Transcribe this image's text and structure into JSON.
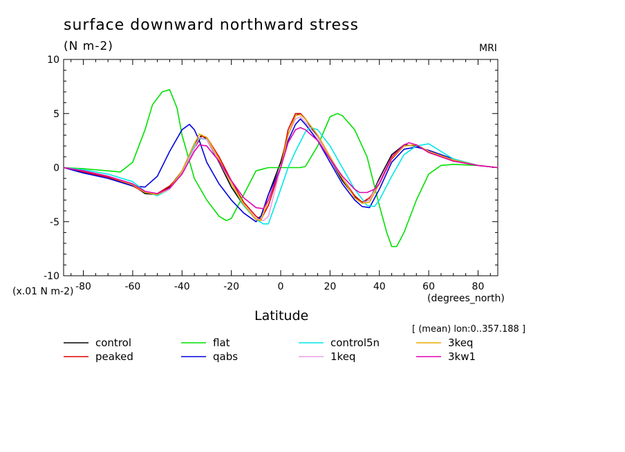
{
  "title": "surface downward northward stress",
  "units": "(N m-2)",
  "model": "MRI",
  "y_scale_note": "(x.01 N m-2)",
  "x_units": "(degrees_north)",
  "xlabel": "Latitude",
  "mean_note": "[ (mean) lon:0..357.188 ]",
  "chart_data": {
    "type": "line",
    "title": "surface downward northward stress",
    "xlabel": "Latitude",
    "ylabel": "(N m-2)",
    "xlim": [
      -88,
      88
    ],
    "ylim": [
      -10,
      10
    ],
    "x_ticks": [
      -80,
      -60,
      -40,
      -20,
      0,
      20,
      40,
      60,
      80
    ],
    "y_ticks": [
      -10,
      -5,
      0,
      5,
      10
    ],
    "x_tick_labels": [
      "-80",
      "-60",
      "-40",
      "-20",
      "0",
      "20",
      "40",
      "60",
      "80"
    ],
    "y_tick_labels": [
      "-10",
      "-5",
      "0",
      "5",
      "10"
    ],
    "grid": false,
    "legend_position": "bottom",
    "series": [
      {
        "name": "control",
        "color": "#000000",
        "x": [
          -88,
          -80,
          -70,
          -60,
          -55,
          -50,
          -45,
          -40,
          -35,
          -32,
          -30,
          -25,
          -20,
          -15,
          -10,
          -8,
          -5,
          0,
          3,
          6,
          8,
          10,
          15,
          20,
          25,
          30,
          33,
          36,
          40,
          45,
          50,
          55,
          60,
          70,
          80,
          88
        ],
        "y": [
          0,
          -0.3,
          -0.8,
          -1.6,
          -2.4,
          -2.5,
          -1.8,
          -0.3,
          2.2,
          3.0,
          2.6,
          0.5,
          -1.8,
          -3.5,
          -4.8,
          -4.5,
          -2.5,
          0.5,
          3.0,
          4.8,
          5.0,
          4.5,
          2.8,
          0.8,
          -1.2,
          -2.7,
          -3.2,
          -3.0,
          -1.0,
          1.2,
          2.1,
          2.0,
          1.5,
          0.7,
          0.2,
          0
        ]
      },
      {
        "name": "peaked",
        "color": "#e00000",
        "x": [
          -88,
          -80,
          -70,
          -60,
          -55,
          -50,
          -45,
          -40,
          -35,
          -32,
          -30,
          -25,
          -20,
          -15,
          -10,
          -8,
          -5,
          0,
          3,
          6,
          8,
          10,
          15,
          20,
          25,
          30,
          33,
          36,
          40,
          45,
          50,
          55,
          60,
          70,
          80,
          88
        ],
        "y": [
          0,
          -0.4,
          -0.9,
          -1.7,
          -2.3,
          -2.4,
          -1.7,
          -0.5,
          1.8,
          2.9,
          2.8,
          1.0,
          -1.2,
          -3.2,
          -4.5,
          -4.8,
          -3.5,
          0,
          3.5,
          5.0,
          5.0,
          4.5,
          3.0,
          1.0,
          -1.0,
          -2.6,
          -3.2,
          -2.8,
          -1.5,
          0.8,
          2.0,
          2.1,
          1.4,
          0.6,
          0.2,
          0
        ]
      },
      {
        "name": "flat",
        "color": "#00e000",
        "x": [
          -88,
          -80,
          -70,
          -65,
          -60,
          -55,
          -52,
          -48,
          -45,
          -42,
          -40,
          -35,
          -30,
          -25,
          -22,
          -20,
          -15,
          -10,
          -5,
          0,
          5,
          8,
          10,
          15,
          20,
          23,
          25,
          30,
          35,
          40,
          43,
          45,
          47,
          50,
          55,
          60,
          65,
          70,
          80,
          88
        ],
        "y": [
          0,
          -0.1,
          -0.3,
          -0.4,
          0.5,
          3.5,
          5.8,
          7.0,
          7.2,
          5.5,
          3.0,
          -1.0,
          -3.0,
          -4.5,
          -4.9,
          -4.7,
          -2.5,
          -0.3,
          0,
          0,
          0,
          0,
          0.1,
          2.0,
          4.7,
          5.0,
          4.8,
          3.5,
          1.0,
          -3.5,
          -6.0,
          -7.3,
          -7.3,
          -6.0,
          -3.0,
          -0.6,
          0.2,
          0.3,
          0.2,
          0
        ]
      },
      {
        "name": "qabs",
        "color": "#0000e0",
        "x": [
          -88,
          -80,
          -70,
          -60,
          -55,
          -50,
          -45,
          -40,
          -37,
          -35,
          -33,
          -30,
          -25,
          -20,
          -15,
          -10,
          -8,
          -5,
          0,
          3,
          6,
          8,
          10,
          15,
          20,
          25,
          30,
          33,
          36,
          40,
          45,
          50,
          55,
          60,
          70,
          80,
          88
        ],
        "y": [
          0,
          -0.5,
          -1.0,
          -1.7,
          -1.8,
          -0.8,
          1.5,
          3.5,
          4.0,
          3.5,
          2.5,
          0.5,
          -1.5,
          -3.0,
          -4.2,
          -5.0,
          -4.5,
          -2.5,
          0,
          2.5,
          4.0,
          4.5,
          4.0,
          2.5,
          0.5,
          -1.5,
          -3.0,
          -3.6,
          -3.7,
          -2.0,
          0.5,
          1.7,
          1.9,
          1.6,
          0.8,
          0.2,
          0
        ]
      },
      {
        "name": "control5n",
        "color": "#00e8e8",
        "x": [
          -88,
          -80,
          -70,
          -60,
          -55,
          -50,
          -45,
          -40,
          -35,
          -33,
          -30,
          -25,
          -20,
          -15,
          -10,
          -7,
          -5,
          0,
          3,
          6,
          10,
          12,
          15,
          20,
          25,
          30,
          35,
          38,
          40,
          45,
          50,
          55,
          60,
          70,
          80,
          88
        ],
        "y": [
          0,
          -0.2,
          -0.6,
          -1.3,
          -2.2,
          -2.6,
          -2.0,
          -0.5,
          2.0,
          2.7,
          2.6,
          0.8,
          -1.5,
          -3.5,
          -4.8,
          -5.2,
          -5.2,
          -2.0,
          0,
          1.5,
          3.3,
          3.7,
          3.5,
          2.0,
          0,
          -2.0,
          -3.5,
          -3.6,
          -3.0,
          -0.8,
          1.2,
          2.0,
          2.2,
          0.8,
          0.2,
          0
        ]
      },
      {
        "name": "1keq",
        "color": "#e8a0e8",
        "x": [
          -88,
          -80,
          -70,
          -60,
          -55,
          -50,
          -45,
          -40,
          -35,
          -33,
          -30,
          -25,
          -20,
          -15,
          -10,
          -7,
          -5,
          0,
          3,
          6,
          8,
          10,
          15,
          20,
          25,
          30,
          33,
          36,
          40,
          45,
          50,
          55,
          60,
          70,
          80,
          88
        ],
        "y": [
          0,
          -0.3,
          -0.8,
          -1.5,
          -2.2,
          -2.5,
          -2.0,
          -0.5,
          1.8,
          2.8,
          2.6,
          0.6,
          -1.5,
          -3.4,
          -4.7,
          -4.9,
          -4.5,
          0,
          3.0,
          4.5,
          4.7,
          4.2,
          2.8,
          0.8,
          -1.0,
          -2.8,
          -3.3,
          -3.0,
          -1.2,
          1.0,
          2.0,
          2.1,
          1.5,
          0.7,
          0.2,
          0
        ]
      },
      {
        "name": "3keq",
        "color": "#e8a800",
        "x": [
          -88,
          -80,
          -70,
          -60,
          -55,
          -50,
          -45,
          -40,
          -35,
          -33,
          -30,
          -25,
          -20,
          -15,
          -10,
          -8,
          -5,
          0,
          3,
          6,
          8,
          10,
          15,
          20,
          25,
          30,
          33,
          36,
          40,
          45,
          50,
          55,
          60,
          70,
          80,
          88
        ],
        "y": [
          0,
          -0.3,
          -0.8,
          -1.6,
          -2.3,
          -2.5,
          -1.9,
          -0.3,
          2.2,
          3.1,
          2.8,
          0.8,
          -1.5,
          -3.4,
          -4.8,
          -4.9,
          -3.0,
          0,
          3.0,
          4.8,
          4.9,
          4.5,
          3.0,
          1.0,
          -1.0,
          -2.8,
          -3.3,
          -3.2,
          -1.5,
          0.9,
          2.0,
          2.1,
          1.5,
          0.7,
          0.2,
          0
        ]
      },
      {
        "name": "3kw1",
        "color": "#e000b0",
        "x": [
          -88,
          -80,
          -70,
          -60,
          -55,
          -50,
          -45,
          -40,
          -35,
          -33,
          -30,
          -25,
          -20,
          -15,
          -10,
          -7,
          -5,
          0,
          3,
          6,
          8,
          10,
          15,
          20,
          25,
          30,
          32,
          35,
          38,
          40,
          45,
          50,
          52,
          55,
          60,
          70,
          80,
          88
        ],
        "y": [
          0,
          -0.3,
          -0.8,
          -1.5,
          -2.2,
          -2.4,
          -1.9,
          -0.6,
          1.5,
          2.1,
          2.0,
          0.6,
          -1.2,
          -2.8,
          -3.7,
          -3.8,
          -3.0,
          0,
          2.3,
          3.5,
          3.7,
          3.5,
          2.5,
          0.8,
          -0.8,
          -2.0,
          -2.3,
          -2.3,
          -2.0,
          -1.5,
          1.0,
          2.1,
          2.3,
          2.1,
          1.4,
          0.6,
          0.2,
          0
        ]
      }
    ]
  }
}
